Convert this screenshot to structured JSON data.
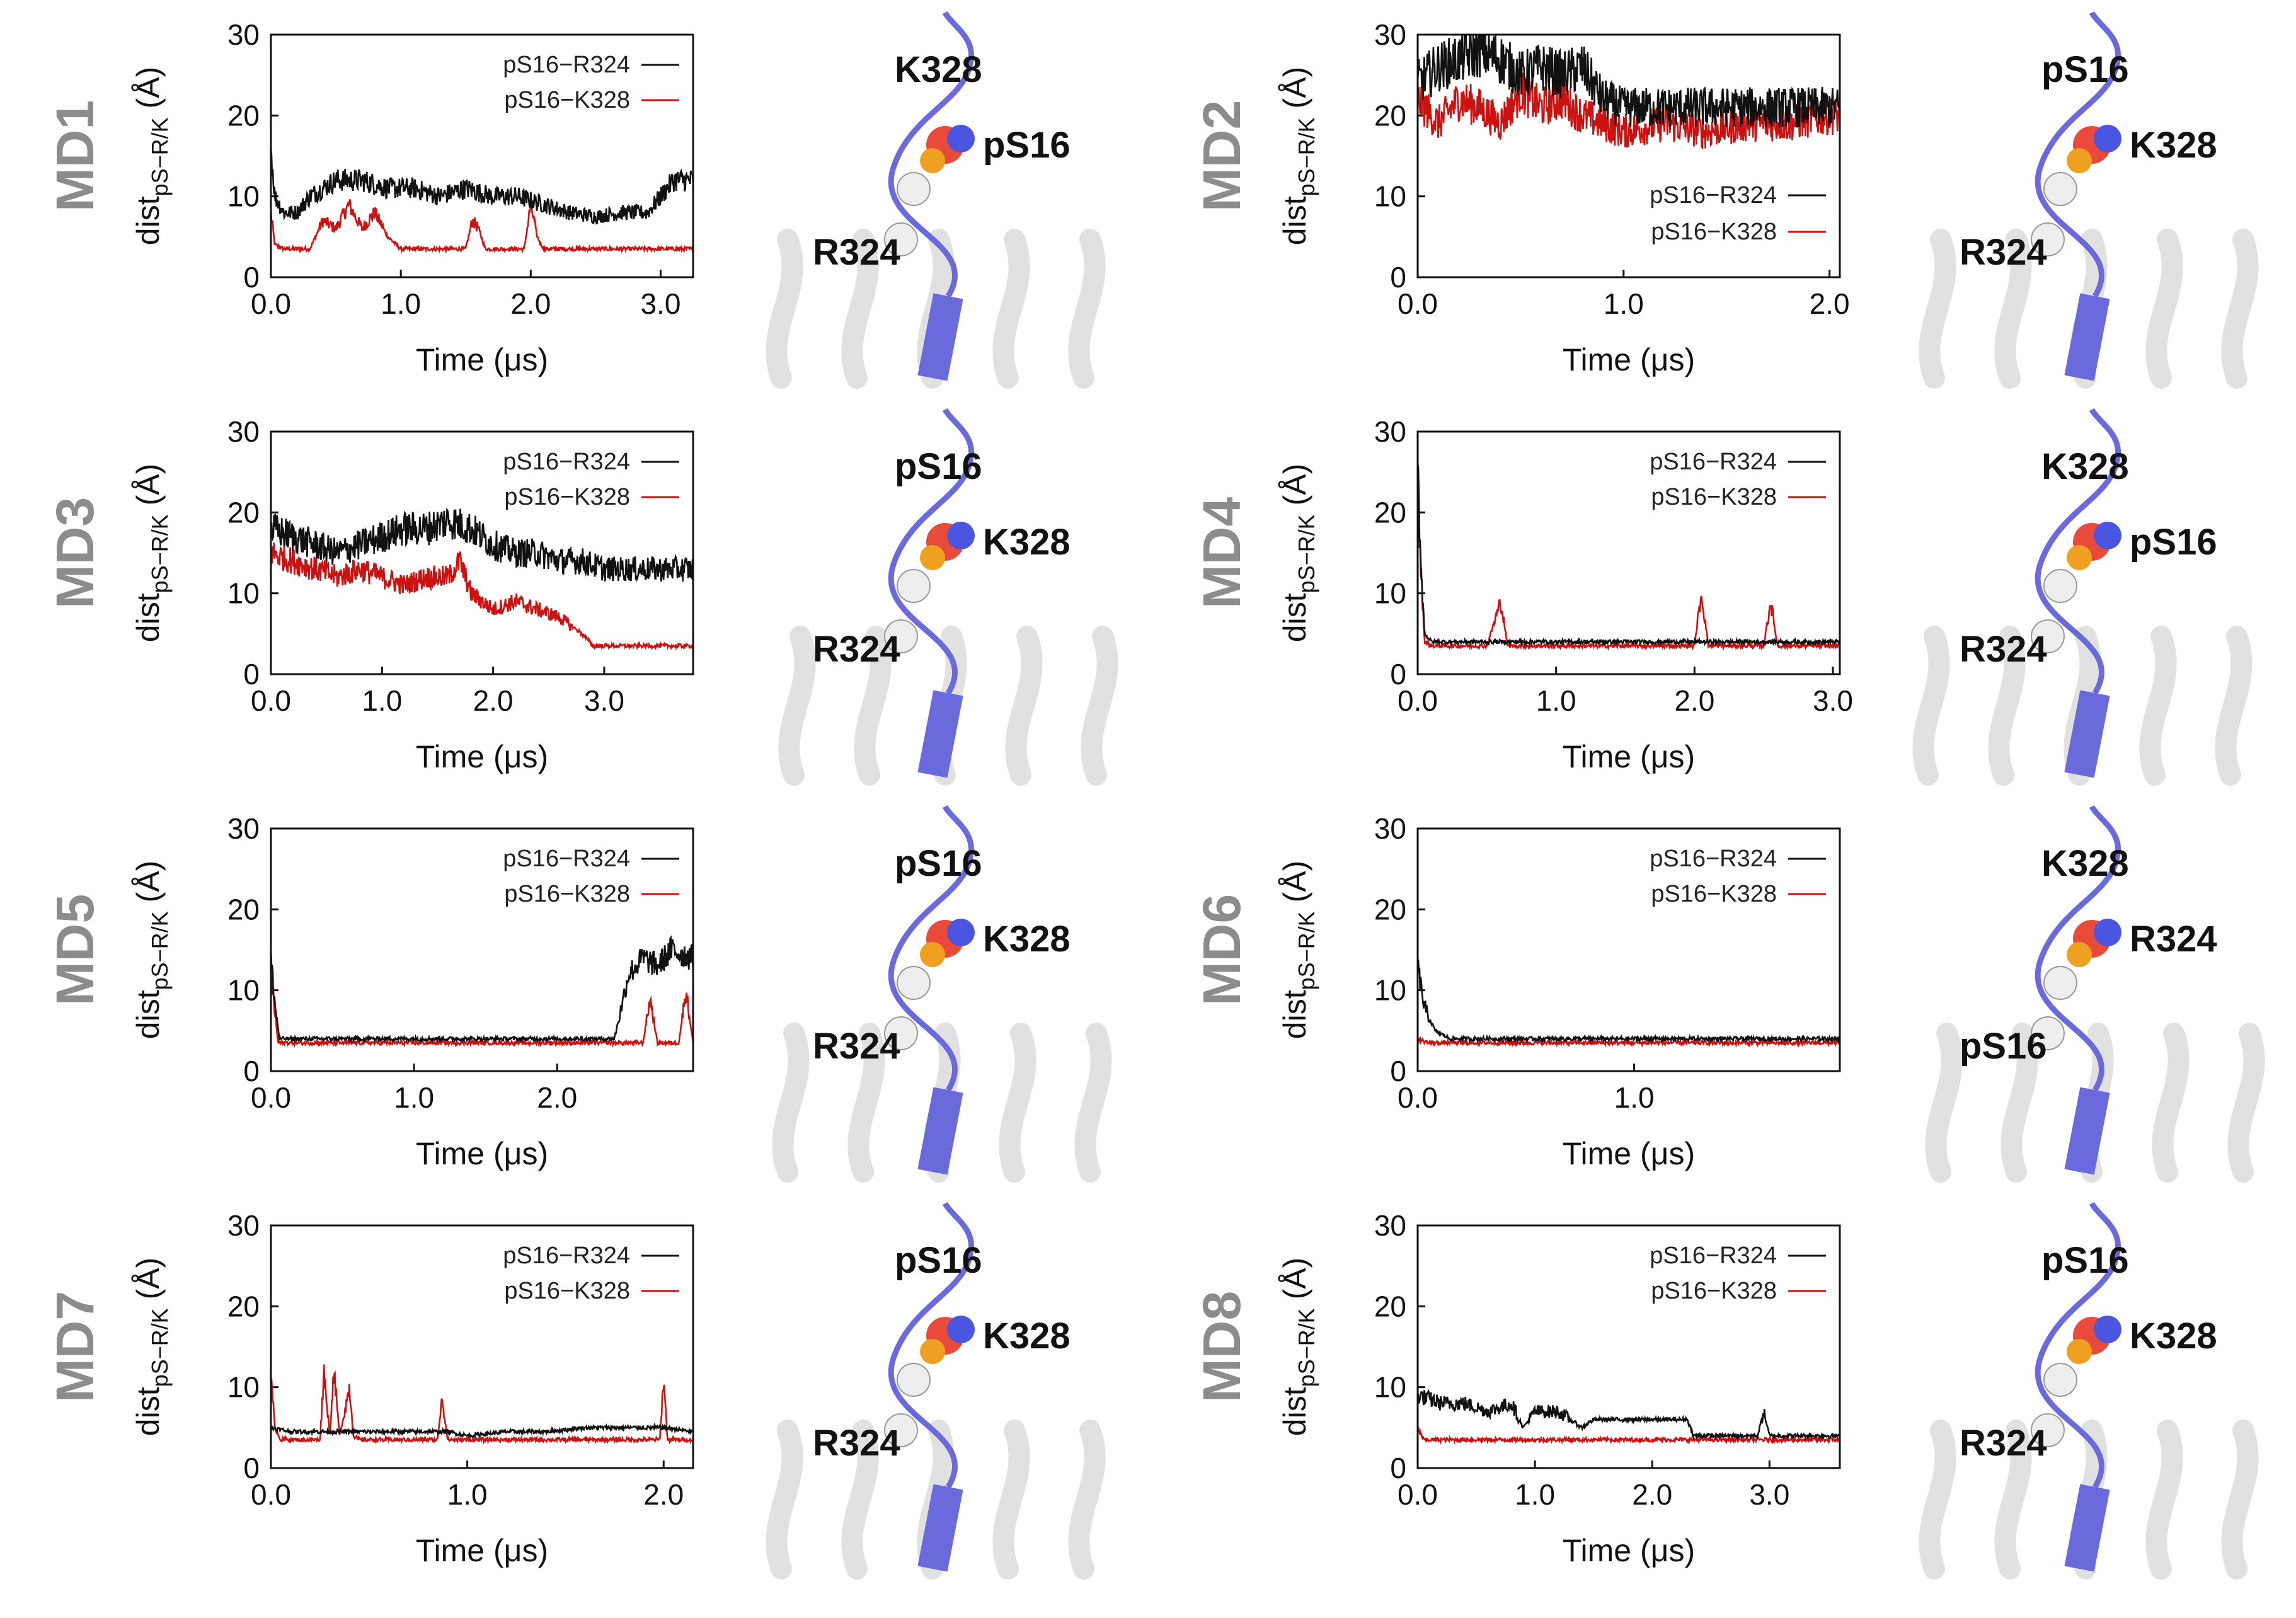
{
  "colors": {
    "r324": "#111111",
    "k328": "#cc1111",
    "helix": "#6a6adc",
    "protein": "#d9d9d9",
    "label_gray": "#8c8c8c"
  },
  "chart_data": [
    {
      "type": "line",
      "panel": "MD1",
      "xlabel": "Time (μs)",
      "ylabel": "dist",
      "ylabel_sub": "pS−R/K",
      "ylabel_unit": "(Å)",
      "xlim": [
        0,
        3.25
      ],
      "ylim": [
        0,
        30
      ],
      "xticks": [
        0,
        1,
        2,
        3
      ],
      "xtick_labels": [
        "0.0",
        "1.0",
        "2.0",
        "3.0"
      ],
      "yticks": [
        0,
        10,
        20,
        30
      ],
      "ytick_labels": [
        "0",
        "10",
        "20",
        "30"
      ],
      "legend_position": "top-right",
      "series": [
        {
          "name": "pS16−R324",
          "x": [
            0,
            0.03,
            0.1,
            0.2,
            0.3,
            0.5,
            0.7,
            0.9,
            1.1,
            1.3,
            1.5,
            1.7,
            1.9,
            2.1,
            2.3,
            2.5,
            2.7,
            2.9,
            3.0,
            3.1,
            3.2,
            3.25
          ],
          "y": [
            16,
            10,
            8,
            8,
            10,
            12,
            12,
            11,
            11,
            10,
            11,
            10,
            10,
            9,
            8,
            7.5,
            8,
            8,
            10,
            12,
            12,
            12
          ]
        },
        {
          "name": "pS16−K328",
          "x": [
            0,
            0.03,
            0.1,
            0.3,
            0.4,
            0.5,
            0.6,
            0.7,
            0.8,
            0.9,
            1.0,
            1.5,
            1.55,
            1.6,
            1.65,
            1.95,
            2.0,
            2.05,
            2.1,
            2.5,
            3.0,
            3.25
          ],
          "y": [
            8,
            4,
            3.5,
            3.5,
            7,
            6,
            9,
            6,
            8,
            5,
            3.5,
            3.5,
            7,
            6,
            3.5,
            3.5,
            9,
            5,
            3.5,
            3.5,
            3.5,
            3.5
          ]
        }
      ],
      "structure_labels": [
        "K328",
        "pS16",
        "R324"
      ]
    },
    {
      "type": "line",
      "panel": "MD2",
      "xlabel": "Time (μs)",
      "ylabel": "dist",
      "ylabel_sub": "pS−R/K",
      "ylabel_unit": "(Å)",
      "xlim": [
        0,
        2.05
      ],
      "ylim": [
        0,
        30
      ],
      "xticks": [
        0,
        1,
        2
      ],
      "xtick_labels": [
        "0.0",
        "1.0",
        "2.0"
      ],
      "yticks": [
        0,
        10,
        20,
        30
      ],
      "ytick_labels": [
        "0",
        "10",
        "20",
        "30"
      ],
      "legend_position": "bottom-right",
      "series": [
        {
          "name": "pS16−R324",
          "x": [
            0,
            0.1,
            0.2,
            0.3,
            0.4,
            0.5,
            0.6,
            0.7,
            0.8,
            0.9,
            1.0,
            1.2,
            1.4,
            1.6,
            1.8,
            2.0,
            2.05
          ],
          "y": [
            24,
            26,
            27,
            28,
            27,
            25,
            26,
            25,
            26,
            22,
            21,
            21,
            21,
            21,
            21,
            21,
            21
          ]
        },
        {
          "name": "pS16−K328",
          "x": [
            0,
            0.1,
            0.2,
            0.3,
            0.4,
            0.5,
            0.6,
            0.7,
            0.8,
            0.9,
            1.0,
            1.2,
            1.4,
            1.6,
            1.8,
            2.0,
            2.05
          ],
          "y": [
            22,
            19,
            22,
            21,
            19,
            23,
            21,
            22,
            20,
            19,
            18,
            19,
            18,
            19,
            19,
            20,
            20
          ]
        }
      ],
      "structure_labels": [
        "pS16",
        "K328",
        "R324"
      ]
    },
    {
      "type": "line",
      "panel": "MD3",
      "xlabel": "Time (μs)",
      "ylabel": "dist",
      "ylabel_sub": "pS−R/K",
      "ylabel_unit": "(Å)",
      "xlim": [
        0,
        3.8
      ],
      "ylim": [
        0,
        30
      ],
      "xticks": [
        0,
        1,
        2,
        3
      ],
      "xtick_labels": [
        "0.0",
        "1.0",
        "2.0",
        "3.0"
      ],
      "yticks": [
        0,
        10,
        20,
        30
      ],
      "ytick_labels": [
        "0",
        "10",
        "20",
        "30"
      ],
      "legend_position": "top-right",
      "series": [
        {
          "name": "pS16−R324",
          "x": [
            0,
            0.2,
            0.4,
            0.6,
            0.8,
            1.0,
            1.2,
            1.4,
            1.6,
            1.8,
            2.0,
            2.2,
            2.4,
            2.6,
            2.8,
            3.0,
            3.2,
            3.4,
            3.6,
            3.8
          ],
          "y": [
            18,
            17,
            16,
            15,
            16,
            17,
            18,
            18,
            19,
            18,
            16,
            15,
            15,
            14,
            14,
            13,
            13,
            13,
            13,
            13
          ]
        },
        {
          "name": "pS16−K328",
          "x": [
            0,
            0.2,
            0.4,
            0.6,
            0.8,
            1.0,
            1.2,
            1.4,
            1.6,
            1.7,
            1.8,
            2.0,
            2.2,
            2.4,
            2.6,
            2.8,
            2.9,
            3.0,
            3.4,
            3.8
          ],
          "y": [
            15,
            14,
            13,
            12,
            13,
            12,
            11,
            12,
            12,
            14,
            10,
            8,
            9,
            8,
            7,
            5,
            3.5,
            3.5,
            3.5,
            3.5
          ]
        }
      ],
      "structure_labels": [
        "pS16",
        "K328",
        "R324"
      ]
    },
    {
      "type": "line",
      "panel": "MD4",
      "xlabel": "Time (μs)",
      "ylabel": "dist",
      "ylabel_sub": "pS−R/K",
      "ylabel_unit": "(Å)",
      "xlim": [
        0,
        3.05
      ],
      "ylim": [
        0,
        30
      ],
      "xticks": [
        0,
        1,
        2,
        3
      ],
      "xtick_labels": [
        "0.0",
        "1.0",
        "2.0",
        "3.0"
      ],
      "yticks": [
        0,
        10,
        20,
        30
      ],
      "ytick_labels": [
        "0",
        "10",
        "20",
        "30"
      ],
      "legend_position": "top-right",
      "series": [
        {
          "name": "pS16−R324",
          "x": [
            0,
            0.02,
            0.05,
            0.1,
            0.5,
            1.0,
            1.5,
            2.0,
            2.5,
            3.05
          ],
          "y": [
            26,
            15,
            5,
            4,
            4,
            4,
            4,
            4,
            4,
            4
          ]
        },
        {
          "name": "pS16−K328",
          "x": [
            0,
            0.02,
            0.05,
            0.1,
            0.5,
            0.6,
            0.65,
            1.0,
            1.5,
            2.0,
            2.05,
            2.1,
            2.5,
            2.55,
            2.6,
            3.05
          ],
          "y": [
            24,
            14,
            4,
            3.5,
            3.5,
            9,
            3.5,
            3.5,
            3.5,
            3.5,
            10,
            3.5,
            3.5,
            9,
            3.5,
            3.5
          ]
        }
      ],
      "structure_labels": [
        "K328",
        "pS16",
        "R324"
      ]
    },
    {
      "type": "line",
      "panel": "MD5",
      "xlabel": "Time (μs)",
      "ylabel": "dist",
      "ylabel_sub": "pS−R/K",
      "ylabel_unit": "(Å)",
      "xlim": [
        0,
        2.95
      ],
      "ylim": [
        0,
        30
      ],
      "xticks": [
        0,
        1,
        2
      ],
      "xtick_labels": [
        "0.0",
        "1.0",
        "2.0"
      ],
      "yticks": [
        0,
        10,
        20,
        30
      ],
      "ytick_labels": [
        "0",
        "10",
        "20",
        "30"
      ],
      "legend_position": "top-right",
      "series": [
        {
          "name": "pS16−R324",
          "x": [
            0,
            0.03,
            0.06,
            0.1,
            0.5,
            1.0,
            1.5,
            2.0,
            2.4,
            2.45,
            2.5,
            2.6,
            2.7,
            2.8,
            2.95
          ],
          "y": [
            14,
            8,
            4,
            4,
            4,
            4,
            4,
            4,
            4,
            8,
            12,
            14,
            13,
            15,
            14
          ]
        },
        {
          "name": "pS16−K328",
          "x": [
            0,
            0.05,
            0.1,
            0.5,
            1.0,
            1.5,
            2.0,
            2.4,
            2.6,
            2.65,
            2.7,
            2.85,
            2.9,
            2.95
          ],
          "y": [
            12,
            3.5,
            3.5,
            3.5,
            3.5,
            3.5,
            3.5,
            3.5,
            3.5,
            9,
            3.5,
            3.5,
            10,
            3.5
          ]
        }
      ],
      "structure_labels": [
        "pS16",
        "K328",
        "R324"
      ]
    },
    {
      "type": "line",
      "panel": "MD6",
      "xlabel": "Time (μs)",
      "ylabel": "dist",
      "ylabel_sub": "pS−R/K",
      "ylabel_unit": "(Å)",
      "xlim": [
        0,
        1.95
      ],
      "ylim": [
        0,
        30
      ],
      "xticks": [
        0,
        1
      ],
      "xtick_labels": [
        "0.0",
        "1.0"
      ],
      "yticks": [
        0,
        10,
        20,
        30
      ],
      "ytick_labels": [
        "0",
        "10",
        "20",
        "30"
      ],
      "legend_position": "top-right",
      "series": [
        {
          "name": "pS16−R324",
          "x": [
            0,
            0.03,
            0.08,
            0.15,
            0.5,
            1.0,
            1.5,
            1.95
          ],
          "y": [
            13,
            8,
            5,
            4,
            4,
            4,
            4,
            4
          ]
        },
        {
          "name": "pS16−K328",
          "x": [
            0,
            0.05,
            0.1,
            0.5,
            1.0,
            1.5,
            1.95
          ],
          "y": [
            4,
            3.5,
            3.5,
            3.5,
            3.5,
            3.5,
            3.5
          ]
        }
      ],
      "structure_labels": [
        "K328",
        "R324",
        "pS16"
      ]
    },
    {
      "type": "line",
      "panel": "MD7",
      "xlabel": "Time (μs)",
      "ylabel": "dist",
      "ylabel_sub": "pS−R/K",
      "ylabel_unit": "(Å)",
      "xlim": [
        0,
        2.15
      ],
      "ylim": [
        0,
        30
      ],
      "xticks": [
        0,
        1,
        2
      ],
      "xtick_labels": [
        "0.0",
        "1.0",
        "2.0"
      ],
      "yticks": [
        0,
        10,
        20,
        30
      ],
      "ytick_labels": [
        "0",
        "10",
        "20",
        "30"
      ],
      "legend_position": "top-right",
      "series": [
        {
          "name": "pS16−R324",
          "x": [
            0,
            0.1,
            0.3,
            0.5,
            0.7,
            0.9,
            1.0,
            1.2,
            1.4,
            1.6,
            1.8,
            2.0,
            2.15
          ],
          "y": [
            5,
            4.5,
            4.5,
            4.5,
            4.5,
            4.5,
            4,
            4.5,
            4.5,
            5,
            5,
            5,
            4.5
          ]
        },
        {
          "name": "pS16−K328",
          "x": [
            0,
            0.02,
            0.05,
            0.25,
            0.27,
            0.3,
            0.32,
            0.35,
            0.4,
            0.42,
            0.45,
            0.85,
            0.87,
            0.9,
            1.0,
            1.5,
            1.98,
            2.0,
            2.02,
            2.15
          ],
          "y": [
            11,
            5,
            3.5,
            3.5,
            12,
            4,
            12,
            4,
            10,
            4,
            3.5,
            3.5,
            9,
            3.5,
            3.5,
            3.5,
            3.5,
            11,
            3.5,
            3.5
          ]
        }
      ],
      "structure_labels": [
        "pS16",
        "K328",
        "R324"
      ]
    },
    {
      "type": "line",
      "panel": "MD8",
      "xlabel": "Time (μs)",
      "ylabel": "dist",
      "ylabel_sub": "pS−R/K",
      "ylabel_unit": "(Å)",
      "xlim": [
        0,
        3.6
      ],
      "ylim": [
        0,
        30
      ],
      "xticks": [
        0,
        1,
        2,
        3
      ],
      "xtick_labels": [
        "0.0",
        "1.0",
        "2.0",
        "3.0"
      ],
      "yticks": [
        0,
        10,
        20,
        30
      ],
      "ytick_labels": [
        "0",
        "10",
        "20",
        "30"
      ],
      "legend_position": "top-right",
      "series": [
        {
          "name": "pS16−R324",
          "x": [
            0,
            0.2,
            0.4,
            0.6,
            0.8,
            0.9,
            1.0,
            1.2,
            1.4,
            1.5,
            1.7,
            1.9,
            2.1,
            2.3,
            2.35,
            2.5,
            2.9,
            2.95,
            3.0,
            3.3,
            3.6
          ],
          "y": [
            9,
            8,
            8,
            7,
            8,
            5,
            7,
            7,
            5,
            6,
            6,
            6,
            6,
            6,
            4,
            4,
            4,
            7,
            4,
            4,
            4
          ]
        },
        {
          "name": "pS16−K328",
          "x": [
            0,
            0.05,
            0.1,
            0.5,
            1.0,
            1.5,
            2.0,
            2.5,
            3.0,
            3.6
          ],
          "y": [
            5,
            3.5,
            3.5,
            3.5,
            3.5,
            3.5,
            3.5,
            3.5,
            3.5,
            3.5
          ]
        }
      ],
      "structure_labels": [
        "pS16",
        "K328",
        "R324"
      ]
    }
  ]
}
